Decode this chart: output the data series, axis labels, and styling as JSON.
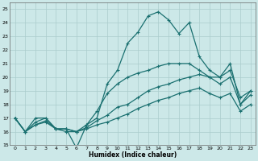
{
  "xlabel": "Humidex (Indice chaleur)",
  "xlim": [
    -0.5,
    23.5
  ],
  "ylim": [
    15,
    25.5
  ],
  "xticks": [
    0,
    1,
    2,
    3,
    4,
    5,
    6,
    7,
    8,
    9,
    10,
    11,
    12,
    13,
    14,
    15,
    16,
    17,
    18,
    19,
    20,
    21,
    22,
    23
  ],
  "yticks": [
    15,
    16,
    17,
    18,
    19,
    20,
    21,
    22,
    23,
    24,
    25
  ],
  "bg_color": "#cce8e8",
  "grid_color": "#aacccc",
  "line_color": "#1a7070",
  "lines": [
    {
      "x": [
        0,
        1,
        2,
        3,
        4,
        5,
        6,
        7,
        8,
        9,
        10,
        11,
        12,
        13,
        14,
        15,
        16,
        17,
        18,
        19,
        20,
        21,
        22,
        23
      ],
      "y": [
        17,
        16,
        17,
        17,
        16.2,
        16.2,
        14.8,
        16.5,
        17,
        19.5,
        20.5,
        22.5,
        23.3,
        24.5,
        24.8,
        24.2,
        23.2,
        24.0,
        21.5,
        20.5,
        20.0,
        21.0,
        18.0,
        19.0
      ]
    },
    {
      "x": [
        0,
        1,
        2,
        3,
        4,
        5,
        6,
        7,
        8,
        9,
        10,
        11,
        12,
        13,
        14,
        15,
        16,
        17,
        18,
        19,
        20,
        21,
        22,
        23
      ],
      "y": [
        17,
        16,
        16.7,
        17,
        16.2,
        16.2,
        16,
        16.5,
        17.5,
        18.8,
        19.5,
        20.0,
        20.3,
        20.5,
        20.8,
        21.0,
        21.0,
        21.0,
        20.5,
        20.0,
        20.0,
        20.5,
        18.5,
        19.0
      ]
    },
    {
      "x": [
        0,
        1,
        2,
        3,
        4,
        5,
        6,
        7,
        8,
        9,
        10,
        11,
        12,
        13,
        14,
        15,
        16,
        17,
        18,
        19,
        20,
        21,
        22,
        23
      ],
      "y": [
        17,
        16,
        16.5,
        16.8,
        16.2,
        16.2,
        16,
        16.3,
        16.8,
        17.2,
        17.8,
        18.0,
        18.5,
        19.0,
        19.3,
        19.5,
        19.8,
        20.0,
        20.2,
        20.0,
        19.5,
        20.0,
        18.0,
        18.7
      ]
    },
    {
      "x": [
        0,
        1,
        2,
        3,
        4,
        5,
        6,
        7,
        8,
        9,
        10,
        11,
        12,
        13,
        14,
        15,
        16,
        17,
        18,
        19,
        20,
        21,
        22,
        23
      ],
      "y": [
        17,
        16,
        16.5,
        16.7,
        16.2,
        16.0,
        16,
        16.2,
        16.5,
        16.7,
        17.0,
        17.3,
        17.7,
        18.0,
        18.3,
        18.5,
        18.8,
        19.0,
        19.2,
        18.8,
        18.5,
        18.8,
        17.5,
        18.0
      ]
    }
  ]
}
